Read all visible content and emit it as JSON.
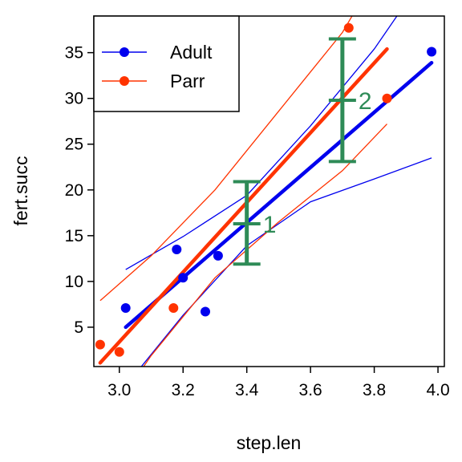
{
  "chart_data": {
    "type": "scatter",
    "xlabel": "step.len",
    "ylabel": "fert.succ",
    "xlim": [
      2.92,
      4.02
    ],
    "ylim": [
      0.7,
      39.0
    ],
    "xticks": [
      "3.0",
      "3.2",
      "3.4",
      "3.6",
      "3.8",
      "4.0"
    ],
    "yticks": [
      "5",
      "10",
      "15",
      "20",
      "25",
      "30",
      "35"
    ],
    "grid": false,
    "legend_position": "top-left",
    "series": [
      {
        "name": "Adult",
        "color": "#0000EE",
        "points": [
          [
            3.02,
            7.1
          ],
          [
            3.18,
            13.5
          ],
          [
            3.2,
            10.4
          ],
          [
            3.27,
            6.7
          ],
          [
            3.31,
            12.8
          ],
          [
            3.98,
            35.1
          ]
        ],
        "fit": [
          [
            3.02,
            5.0
          ],
          [
            3.98,
            33.9
          ]
        ],
        "ci_lower": [
          [
            3.02,
            -1.4
          ],
          [
            3.2,
            6.3
          ],
          [
            3.4,
            13.9
          ],
          [
            3.6,
            18.7
          ],
          [
            3.8,
            21.2
          ],
          [
            3.98,
            23.5
          ]
        ],
        "ci_upper": [
          [
            3.02,
            11.3
          ],
          [
            3.2,
            14.9
          ],
          [
            3.4,
            19.4
          ],
          [
            3.6,
            27.0
          ],
          [
            3.8,
            35.4
          ],
          [
            3.98,
            44.5
          ]
        ]
      },
      {
        "name": "Parr",
        "color": "#FF3300",
        "points": [
          [
            2.94,
            3.1
          ],
          [
            3.0,
            2.3
          ],
          [
            3.17,
            7.1
          ],
          [
            3.72,
            37.7
          ],
          [
            3.84,
            30.0
          ]
        ],
        "fit": [
          [
            2.94,
            1.1
          ],
          [
            3.84,
            35.4
          ]
        ],
        "ci_lower": [
          [
            2.94,
            -6.2
          ],
          [
            3.1,
            1.9
          ],
          [
            3.3,
            10.4
          ],
          [
            3.5,
            16.5
          ],
          [
            3.7,
            22.1
          ],
          [
            3.84,
            27.2
          ]
        ],
        "ci_upper": [
          [
            2.94,
            7.9
          ],
          [
            3.1,
            12.8
          ],
          [
            3.3,
            20.0
          ],
          [
            3.5,
            28.6
          ],
          [
            3.7,
            37.2
          ],
          [
            3.84,
            45.5
          ]
        ]
      }
    ],
    "annotations": [
      {
        "label": "1",
        "x": 3.4,
        "y_low": 11.9,
        "y_mid": 16.3,
        "y_high": 20.9,
        "color": "#2E8B57"
      },
      {
        "label": "2",
        "x": 3.7,
        "y_low": 23.1,
        "y_mid": 29.8,
        "y_high": 36.5,
        "color": "#2E8B57"
      }
    ]
  }
}
